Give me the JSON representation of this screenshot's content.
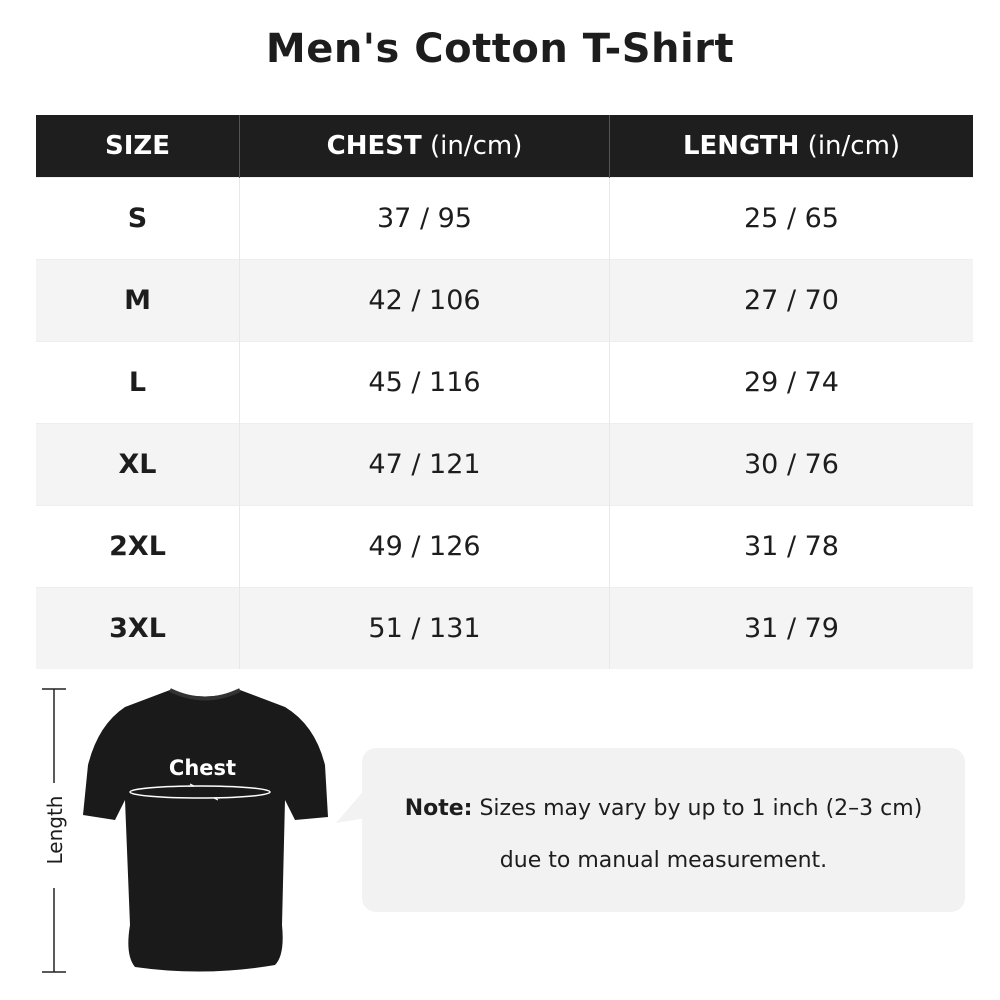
{
  "title": "Men's Cotton T-Shirt",
  "table": {
    "headers": [
      {
        "label": "SIZE",
        "unit": ""
      },
      {
        "label": "CHEST",
        "unit": " (in/cm)"
      },
      {
        "label": "LENGTH",
        "unit": " (in/cm)"
      }
    ],
    "rows": [
      [
        "S",
        "37 / 95",
        "25 / 65"
      ],
      [
        "M",
        "42 / 106",
        "27 / 70"
      ],
      [
        "L",
        "45 / 116",
        "29 / 74"
      ],
      [
        "XL",
        "47 / 121",
        "30 / 76"
      ],
      [
        "2XL",
        "49 / 126",
        "31 / 78"
      ],
      [
        "3XL",
        "51 / 131",
        "31 / 79"
      ]
    ]
  },
  "diagram": {
    "chest_label": "Chest",
    "length_label": "Length"
  },
  "note": {
    "prefix": "Note:",
    "line1": " Sizes may vary by up to 1 inch (2–3 cm)",
    "line2": "due to manual measurement."
  }
}
